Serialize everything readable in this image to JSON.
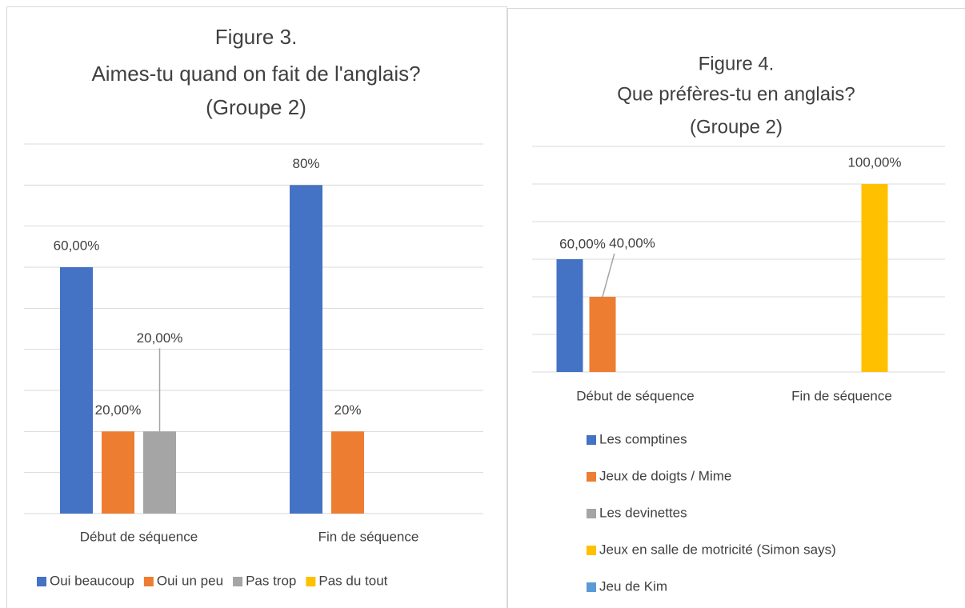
{
  "chart_data": [
    {
      "type": "bar",
      "title": [
        "Figure 3.",
        "Aimes-tu quand on fait de l'anglais?",
        "(Groupe 2)"
      ],
      "categories": [
        "Début de séquence",
        "Fin de séquence"
      ],
      "series": [
        {
          "name": "Oui beaucoup",
          "color": "#4472c4",
          "values": [
            60,
            80
          ],
          "value_labels": [
            "60,00%",
            "80%"
          ]
        },
        {
          "name": "Oui un peu",
          "color": "#ed7d31",
          "values": [
            20,
            20
          ],
          "value_labels": [
            "20,00%",
            "20%"
          ]
        },
        {
          "name": "Pas trop",
          "color": "#a5a5a5",
          "values": [
            20,
            null
          ],
          "value_labels": [
            "20,00%",
            null
          ]
        },
        {
          "name": "Pas du tout",
          "color": "#ffc000",
          "values": [
            null,
            null
          ],
          "value_labels": [
            null,
            null
          ]
        }
      ],
      "ylim": [
        0,
        90
      ],
      "yticks": [
        0,
        10,
        20,
        30,
        40,
        50,
        60,
        70,
        80,
        90
      ],
      "grid": true,
      "legend": "bottom"
    },
    {
      "type": "bar",
      "title": [
        "Figure 4.",
        "Que préfères-tu en anglais?",
        "(Groupe 2)"
      ],
      "categories": [
        "Début de séquence",
        "Fin de séquence"
      ],
      "series": [
        {
          "name": "Les comptines",
          "color": "#4472c4",
          "values": [
            60,
            null
          ],
          "value_labels": [
            "60,00%",
            null
          ]
        },
        {
          "name": "Jeux de doigts / Mime",
          "color": "#ed7d31",
          "values": [
            40,
            null
          ],
          "value_labels": [
            "40,00%",
            null
          ]
        },
        {
          "name": "Les devinettes",
          "color": "#a5a5a5",
          "values": [
            null,
            null
          ],
          "value_labels": [
            null,
            null
          ]
        },
        {
          "name": "Jeux en salle de motricité (Simon says)",
          "color": "#ffc000",
          "values": [
            null,
            100
          ],
          "value_labels": [
            null,
            "100,00%"
          ]
        },
        {
          "name": "Jeu de Kim",
          "color": "#5b9bd5",
          "values": [
            null,
            null
          ],
          "value_labels": [
            null,
            null
          ]
        }
      ],
      "ylim": [
        0,
        120
      ],
      "yticks": [
        0,
        20,
        40,
        60,
        80,
        100,
        120
      ],
      "grid": true,
      "legend": "bottom-left"
    }
  ]
}
